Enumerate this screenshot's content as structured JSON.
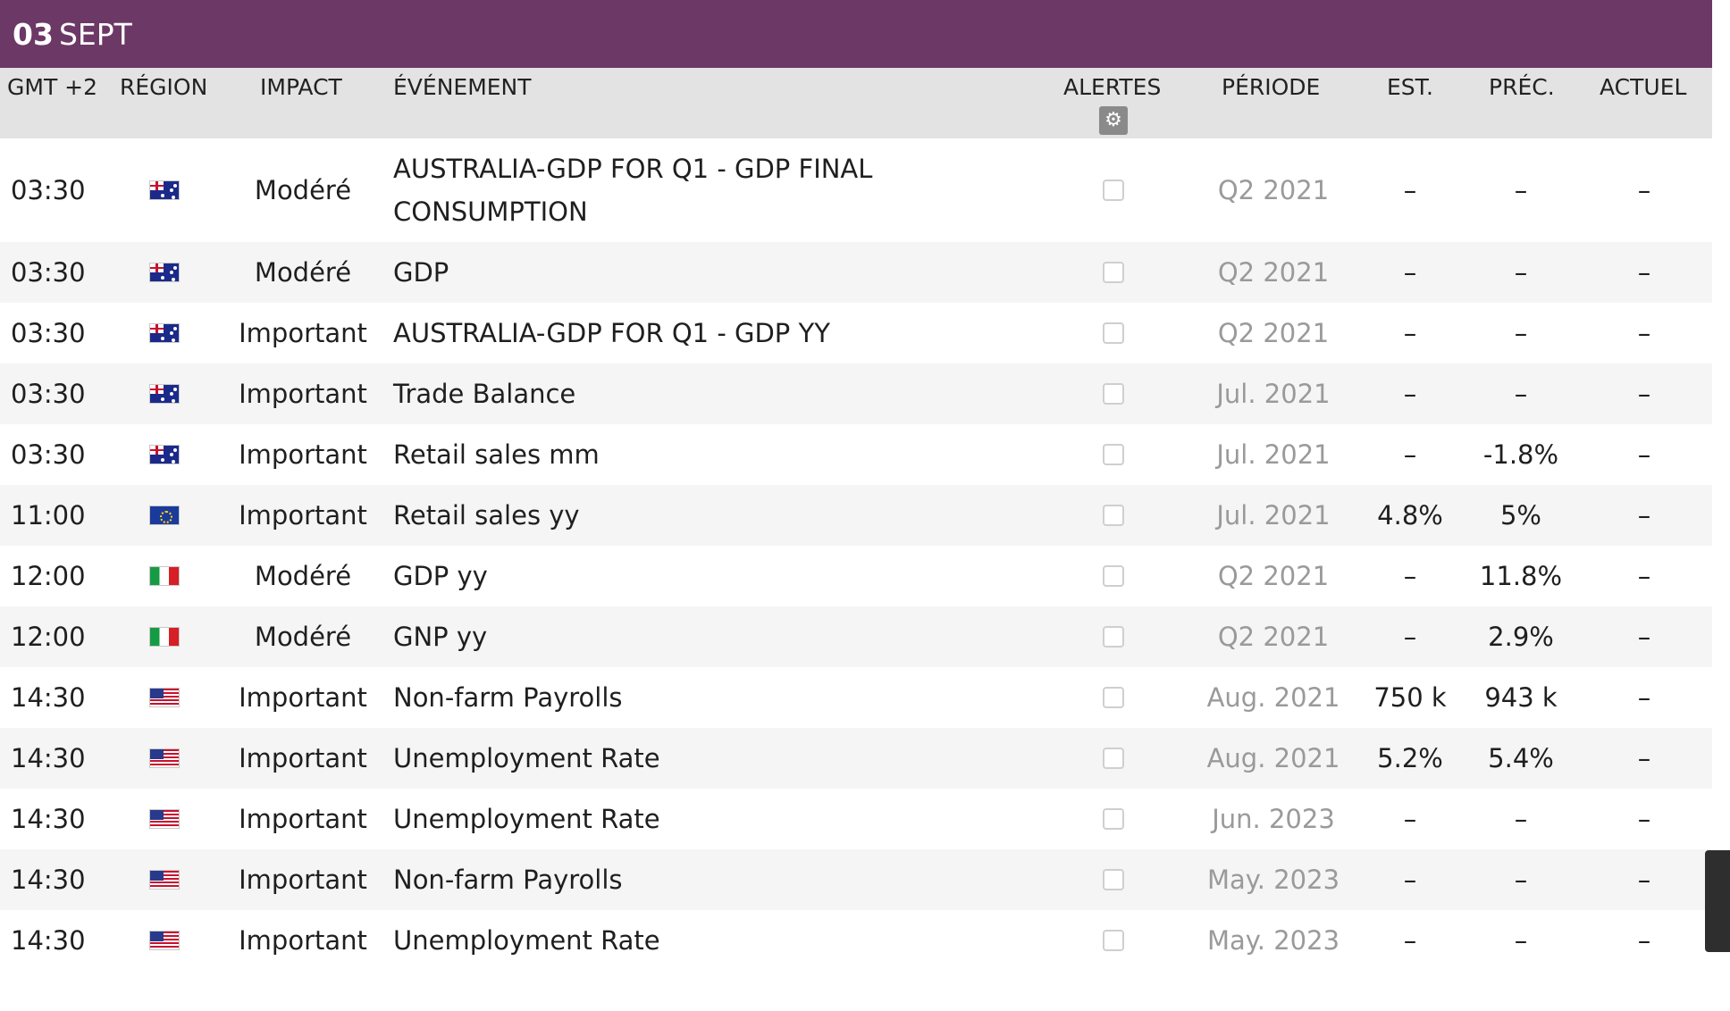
{
  "date": {
    "day": "03",
    "month": "SEPT"
  },
  "columns": {
    "time": "GMT +2",
    "region": "RÉGION",
    "impact": "IMPACT",
    "event": "ÉVÉNEMENT",
    "alerts": "ALERTES",
    "period": "PÉRIODE",
    "estimate": "EST.",
    "previous": "PRÉC.",
    "actual": "ACTUEL"
  },
  "icons": {
    "alerts_settings": "gear-icon"
  },
  "rows": [
    {
      "time": "03:30",
      "flag": "au",
      "impact": "Modéré",
      "event": "AUSTRALIA-GDP FOR Q1 - GDP FINAL CONSUMPTION",
      "period": "Q2 2021",
      "estimate": "–",
      "previous": "–",
      "actual": "–"
    },
    {
      "time": "03:30",
      "flag": "au",
      "impact": "Modéré",
      "event": "GDP",
      "period": "Q2 2021",
      "estimate": "–",
      "previous": "–",
      "actual": "–"
    },
    {
      "time": "03:30",
      "flag": "au",
      "impact": "Important",
      "event": "AUSTRALIA-GDP FOR Q1 - GDP YY",
      "period": "Q2 2021",
      "estimate": "–",
      "previous": "–",
      "actual": "–"
    },
    {
      "time": "03:30",
      "flag": "au",
      "impact": "Important",
      "event": "Trade Balance",
      "period": "Jul. 2021",
      "estimate": "–",
      "previous": "–",
      "actual": "–"
    },
    {
      "time": "03:30",
      "flag": "au",
      "impact": "Important",
      "event": "Retail sales mm",
      "period": "Jul. 2021",
      "estimate": "–",
      "previous": "-1.8%",
      "actual": "–"
    },
    {
      "time": "11:00",
      "flag": "eu",
      "impact": "Important",
      "event": "Retail sales yy",
      "period": "Jul. 2021",
      "estimate": "4.8%",
      "previous": "5%",
      "actual": "–"
    },
    {
      "time": "12:00",
      "flag": "it",
      "impact": "Modéré",
      "event": "GDP yy",
      "period": "Q2 2021",
      "estimate": "–",
      "previous": "11.8%",
      "actual": "–"
    },
    {
      "time": "12:00",
      "flag": "it",
      "impact": "Modéré",
      "event": "GNP yy",
      "period": "Q2 2021",
      "estimate": "–",
      "previous": "2.9%",
      "actual": "–"
    },
    {
      "time": "14:30",
      "flag": "us",
      "impact": "Important",
      "event": "Non-farm Payrolls",
      "period": "Aug. 2021",
      "estimate": "750 k",
      "previous": "943 k",
      "actual": "–"
    },
    {
      "time": "14:30",
      "flag": "us",
      "impact": "Important",
      "event": "Unemployment Rate",
      "period": "Aug. 2021",
      "estimate": "5.2%",
      "previous": "5.4%",
      "actual": "–"
    },
    {
      "time": "14:30",
      "flag": "us",
      "impact": "Important",
      "event": "Unemployment Rate",
      "period": "Jun. 2023",
      "estimate": "–",
      "previous": "–",
      "actual": "–"
    },
    {
      "time": "14:30",
      "flag": "us",
      "impact": "Important",
      "event": "Non-farm Payrolls",
      "period": "May. 2023",
      "estimate": "–",
      "previous": "–",
      "actual": "–"
    },
    {
      "time": "14:30",
      "flag": "us",
      "impact": "Important",
      "event": "Unemployment Rate",
      "period": "May. 2023",
      "estimate": "–",
      "previous": "–",
      "actual": "–"
    }
  ]
}
